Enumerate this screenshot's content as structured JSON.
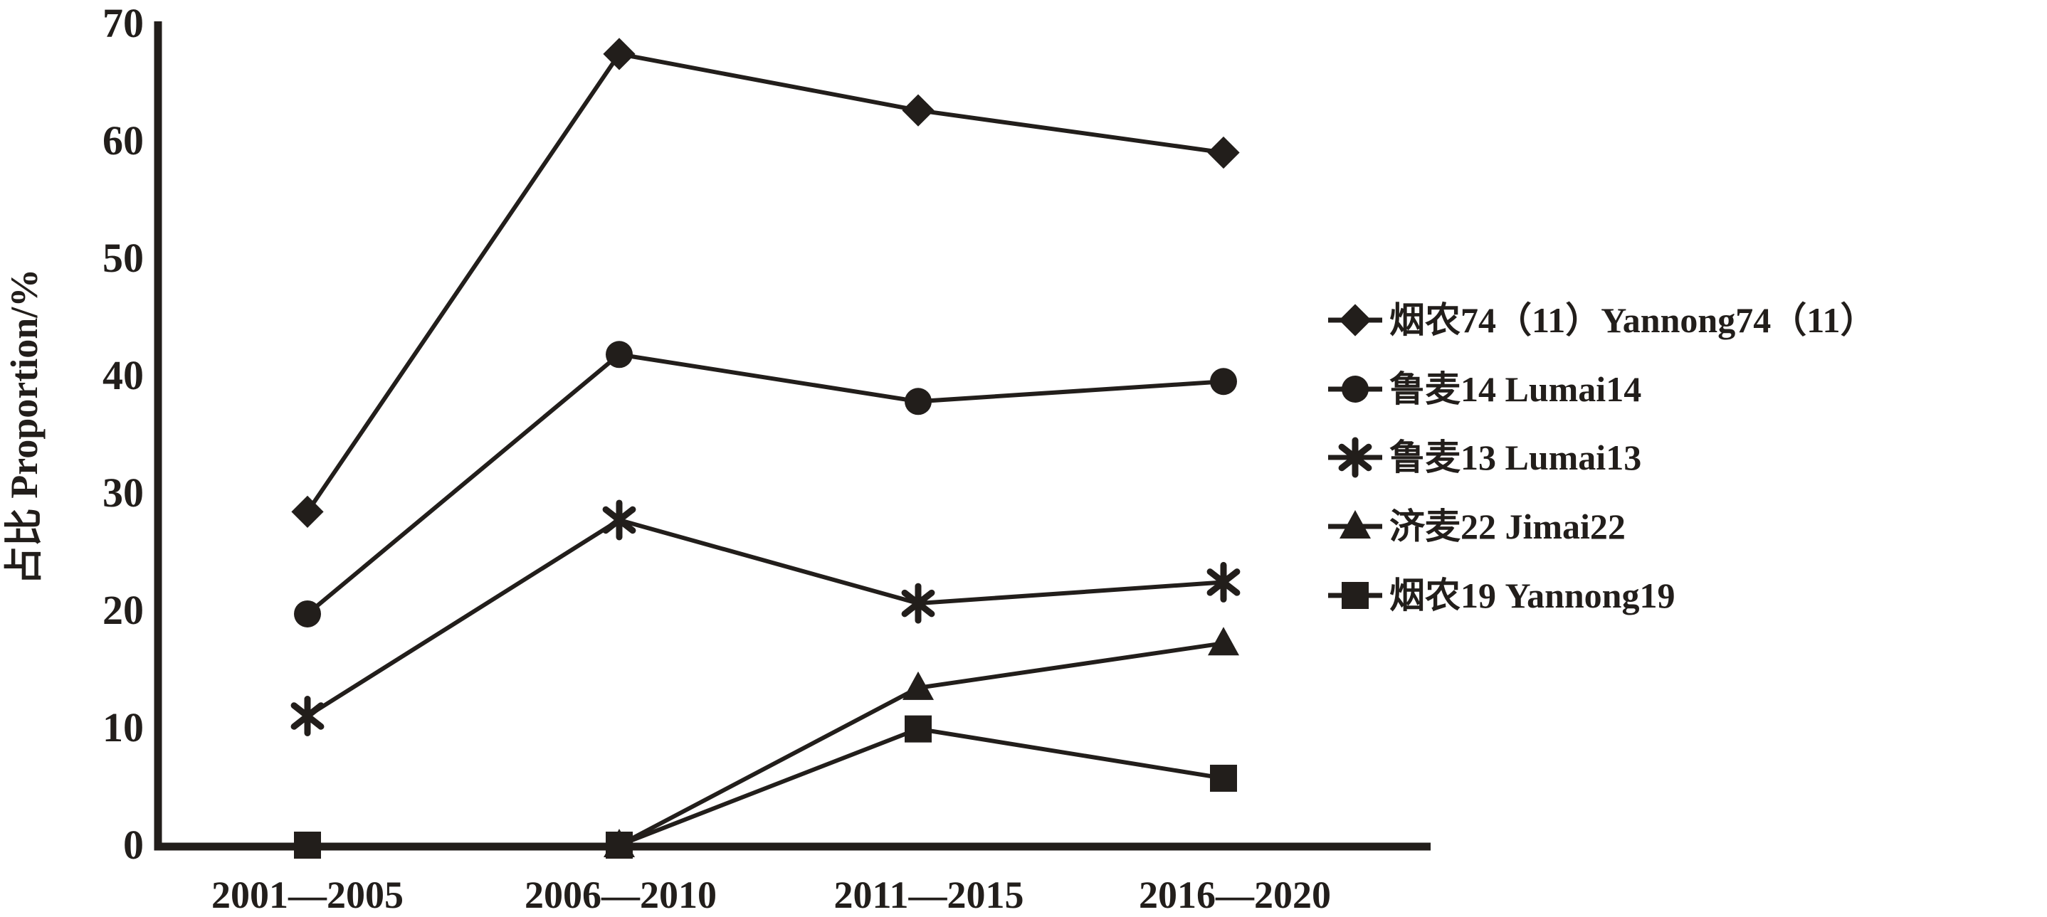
{
  "figure": {
    "background": "#ffffff",
    "ink_color": "#221e1b"
  },
  "y_axis": {
    "title": "占比 Proportion/%",
    "tick_labels": [
      "0",
      "10",
      "20",
      "30",
      "40",
      "50",
      "60",
      "70"
    ],
    "min": 0,
    "max": 70
  },
  "x_axis": {
    "tick_labels": [
      "2001—2005",
      "2006—2010",
      "2011—2015",
      "2016—2020"
    ]
  },
  "legend": {
    "position": "right",
    "items": [
      {
        "label": "烟农74（11）Yannong74（11）",
        "marker": "diamond"
      },
      {
        "label": "鲁麦14 Lumai14",
        "marker": "circle"
      },
      {
        "label": "鲁麦13 Lumai13",
        "marker": "asterisk"
      },
      {
        "label": "济麦22 Jimai22",
        "marker": "triangle"
      },
      {
        "label": "烟农19 Yannong19",
        "marker": "square"
      }
    ]
  },
  "chart_data": {
    "type": "line",
    "categories": [
      "2001—2005",
      "2006—2010",
      "2011—2015",
      "2016—2020"
    ],
    "title": "",
    "xlabel": "",
    "ylabel": "占比 Proportion/%",
    "ylim": [
      0,
      70
    ],
    "y_ticks": [
      0,
      10,
      20,
      30,
      40,
      50,
      60,
      70
    ],
    "grid": false,
    "legend_position": "right",
    "line_color": "#221e1b",
    "series": [
      {
        "name": "烟农74（11）Yannong74（11）",
        "marker": "diamond",
        "values": [
          28.4,
          67.4,
          62.6,
          59.0
        ]
      },
      {
        "name": "鲁麦14 Lumai14",
        "marker": "circle",
        "values": [
          19.7,
          41.8,
          37.8,
          39.5
        ]
      },
      {
        "name": "鲁麦13 Lumai13",
        "marker": "asterisk",
        "values": [
          11.0,
          27.7,
          20.6,
          22.4
        ]
      },
      {
        "name": "济麦22 Jimai22",
        "marker": "triangle",
        "values": [
          null,
          0,
          13.4,
          17.2
        ]
      },
      {
        "name": "烟农19 Yannong19",
        "marker": "square",
        "values": [
          0,
          0,
          9.9,
          5.7
        ]
      }
    ]
  }
}
